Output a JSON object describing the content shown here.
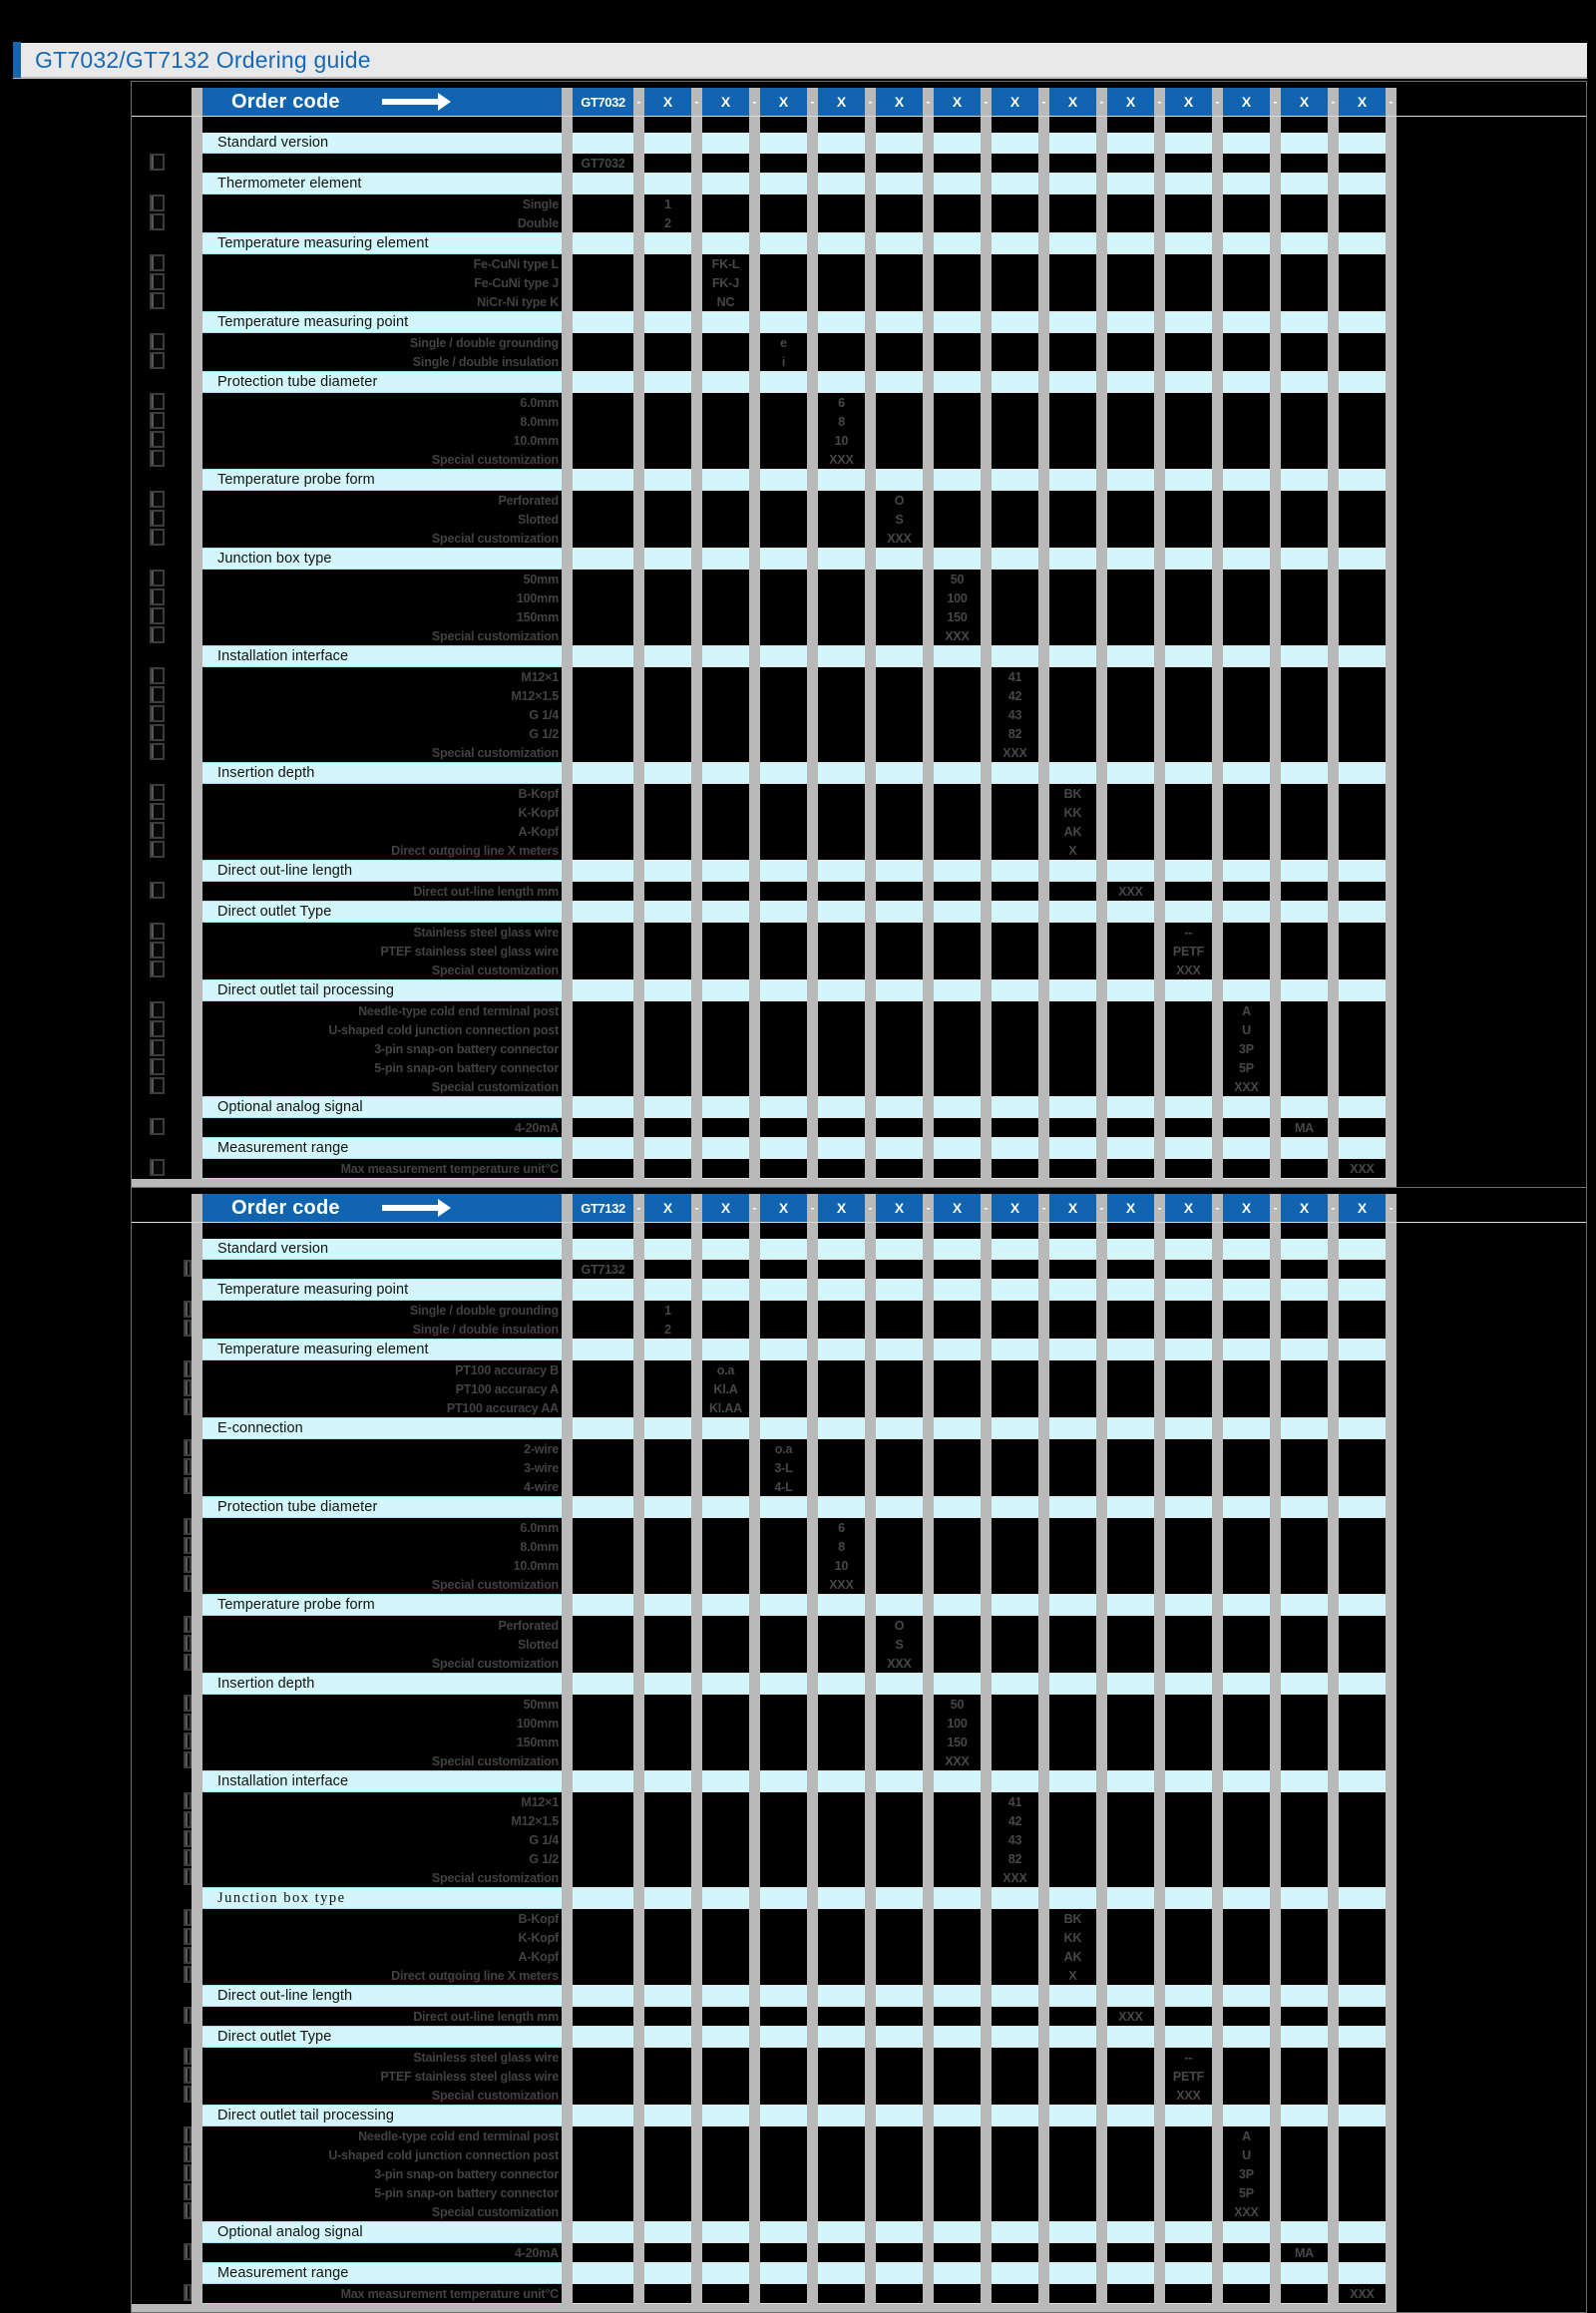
{
  "page_title": "GT7032/GT7132 Ordering guide",
  "header": {
    "order_code_label": "Order code",
    "x_label": "X",
    "dash": "-"
  },
  "colors": {
    "header_blue": "#1164b0",
    "section_cyan": "#d2f6f9",
    "separator_gray": "#b9b9b9",
    "title_blue": "#1769b5",
    "title_bar_gray": "#e9e9e9",
    "page_background": "#000000"
  },
  "tables": [
    {
      "model": "GT7032",
      "sections": [
        {
          "title": "Standard version",
          "col": 0,
          "options": [
            {
              "label": "",
              "code": "GT7032"
            }
          ]
        },
        {
          "title": "Thermometer element",
          "col": 1,
          "options": [
            {
              "label": "Single",
              "code": "1"
            },
            {
              "label": "Double",
              "code": "2"
            }
          ]
        },
        {
          "title": "Temperature measuring element",
          "col": 2,
          "options": [
            {
              "label": "Fe-CuNi type L",
              "code": "FK-L"
            },
            {
              "label": "Fe-CuNi type J",
              "code": "FK-J"
            },
            {
              "label": "NiCr-Ni type K",
              "code": "NC"
            }
          ]
        },
        {
          "title": "Temperature measuring point",
          "col": 3,
          "options": [
            {
              "label": "Single / double grounding",
              "code": "e"
            },
            {
              "label": "Single / double insulation",
              "code": "i"
            }
          ]
        },
        {
          "title": "Protection tube diameter",
          "col": 4,
          "options": [
            {
              "label": "6.0mm",
              "code": "6"
            },
            {
              "label": "8.0mm",
              "code": "8"
            },
            {
              "label": "10.0mm",
              "code": "10"
            },
            {
              "label": "Special customization",
              "code": "XXX"
            }
          ]
        },
        {
          "title": "Temperature probe form",
          "col": 5,
          "options": [
            {
              "label": "Perforated",
              "code": "O"
            },
            {
              "label": "Slotted",
              "code": "S"
            },
            {
              "label": "Special customization",
              "code": "XXX"
            }
          ]
        },
        {
          "title": "Junction box type",
          "col": 6,
          "options": [
            {
              "label": "50mm",
              "code": "50"
            },
            {
              "label": "100mm",
              "code": "100"
            },
            {
              "label": "150mm",
              "code": "150"
            },
            {
              "label": "Special customization",
              "code": "XXX"
            }
          ]
        },
        {
          "title": "Installation interface",
          "col": 7,
          "options": [
            {
              "label": "M12×1",
              "code": "41"
            },
            {
              "label": "M12×1.5",
              "code": "42"
            },
            {
              "label": "G 1/4",
              "code": "43"
            },
            {
              "label": "G 1/2",
              "code": "82"
            },
            {
              "label": "Special customization",
              "code": "XXX"
            }
          ]
        },
        {
          "title": "Insertion depth",
          "col": 8,
          "options": [
            {
              "label": "B-Kopf",
              "code": "BK"
            },
            {
              "label": "K-Kopf",
              "code": "KK"
            },
            {
              "label": "A-Kopf",
              "code": "AK"
            },
            {
              "label": "Direct outgoing line X meters",
              "code": "X"
            }
          ]
        },
        {
          "title": "Direct out-line length",
          "col": 9,
          "options": [
            {
              "label": "Direct out-line length mm",
              "code": "XXX"
            }
          ]
        },
        {
          "title": "Direct outlet Type",
          "col": 10,
          "options": [
            {
              "label": "Stainless steel glass wire",
              "code": "--"
            },
            {
              "label": "PTEF stainless steel glass wire",
              "code": "PETF"
            },
            {
              "label": "Special customization",
              "code": "XXX"
            }
          ]
        },
        {
          "title": "Direct outlet tail processing",
          "col": 11,
          "options": [
            {
              "label": "Needle-type cold end terminal post",
              "code": "A"
            },
            {
              "label": "U-shaped cold junction connection post",
              "code": "U"
            },
            {
              "label": "3-pin snap-on battery connector",
              "code": "3P"
            },
            {
              "label": "5-pin snap-on battery connector",
              "code": "5P"
            },
            {
              "label": "Special customization",
              "code": "XXX"
            }
          ]
        },
        {
          "title": "Optional analog signal",
          "col": 12,
          "options": [
            {
              "label": "4-20mA",
              "code": "MA"
            }
          ]
        },
        {
          "title": "Measurement range",
          "col": 13,
          "options": [
            {
              "label": "Max measurement temperature unit°C",
              "code": "XXX"
            }
          ]
        }
      ]
    },
    {
      "model": "GT7132",
      "sections": [
        {
          "title": "Standard version",
          "col": 0,
          "options": [
            {
              "label": "",
              "code": "GT7132"
            }
          ]
        },
        {
          "title": "Temperature measuring point",
          "col": 1,
          "options": [
            {
              "label": "Single / double grounding",
              "code": "1"
            },
            {
              "label": "Single / double insulation",
              "code": "2"
            }
          ]
        },
        {
          "title": "Temperature measuring element",
          "col": 2,
          "options": [
            {
              "label": "PT100 accuracy  B",
              "code": "o.a"
            },
            {
              "label": "PT100 accuracy A",
              "code": "Kl.A"
            },
            {
              "label": "PT100 accuracy AA",
              "code": "Kl.AA"
            }
          ]
        },
        {
          "title": "E-connection",
          "col": 3,
          "options": [
            {
              "label": "2-wire",
              "code": "o.a"
            },
            {
              "label": "3-wire",
              "code": "3-L"
            },
            {
              "label": "4-wire",
              "code": "4-L"
            }
          ]
        },
        {
          "title": "Protection tube diameter",
          "col": 4,
          "options": [
            {
              "label": "6.0mm",
              "code": "6"
            },
            {
              "label": "8.0mm",
              "code": "8"
            },
            {
              "label": "10.0mm",
              "code": "10"
            },
            {
              "label": "Special customization",
              "code": "XXX"
            }
          ]
        },
        {
          "title": "Temperature probe form",
          "col": 5,
          "options": [
            {
              "label": "Perforated",
              "code": "O"
            },
            {
              "label": "Slotted",
              "code": "S"
            },
            {
              "label": "Special customization",
              "code": "XXX"
            }
          ]
        },
        {
          "title": "Insertion depth",
          "col": 6,
          "options": [
            {
              "label": "50mm",
              "code": "50"
            },
            {
              "label": "100mm",
              "code": "100"
            },
            {
              "label": "150mm",
              "code": "150"
            },
            {
              "label": "Special customization",
              "code": "XXX"
            }
          ]
        },
        {
          "title": "Installation interface",
          "col": 7,
          "options": [
            {
              "label": "M12×1",
              "code": "41"
            },
            {
              "label": "M12×1.5",
              "code": "42"
            },
            {
              "label": "G 1/4",
              "code": "43"
            },
            {
              "label": "G 1/2",
              "code": "82"
            },
            {
              "label": "Special customization",
              "code": "XXX"
            }
          ]
        },
        {
          "title": "Junction box type",
          "col": 8,
          "serif": true,
          "options": [
            {
              "label": "B-Kopf",
              "code": "BK"
            },
            {
              "label": "K-Kopf",
              "code": "KK"
            },
            {
              "label": "A-Kopf",
              "code": "AK"
            },
            {
              "label": "Direct outgoing line X meters",
              "code": "X"
            }
          ]
        },
        {
          "title": "Direct out-line length",
          "col": 9,
          "options": [
            {
              "label": "Direct out-line length mm",
              "code": "XXX"
            }
          ]
        },
        {
          "title": "Direct outlet Type",
          "col": 10,
          "options": [
            {
              "label": "Stainless steel glass wire",
              "code": "--"
            },
            {
              "label": "PTEF stainless steel glass wire",
              "code": "PETF"
            },
            {
              "label": "Special customization",
              "code": "XXX"
            }
          ]
        },
        {
          "title": "Direct outlet tail processing",
          "col": 11,
          "options": [
            {
              "label": "Needle-type cold end terminal post",
              "code": "A"
            },
            {
              "label": "U-shaped cold junction connection post",
              "code": "U"
            },
            {
              "label": "3-pin snap-on battery connector",
              "code": "3P"
            },
            {
              "label": "5-pin snap-on battery connector",
              "code": "5P"
            },
            {
              "label": "Special customization",
              "code": "XXX"
            }
          ]
        },
        {
          "title": "Optional analog signal",
          "col": 12,
          "options": [
            {
              "label": "4-20mA",
              "code": "MA"
            }
          ]
        },
        {
          "title": "Measurement range",
          "col": 13,
          "options": [
            {
              "label": "Max measurement temperature unit°C",
              "code": "XXX"
            }
          ]
        }
      ]
    }
  ]
}
